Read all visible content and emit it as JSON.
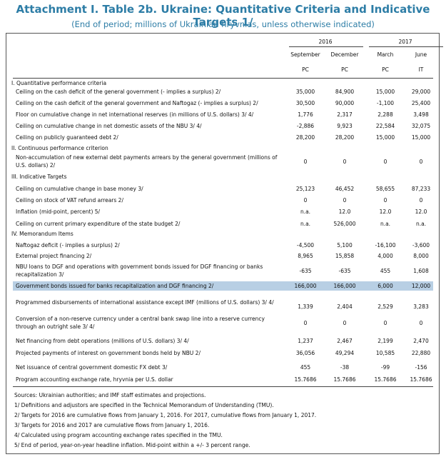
{
  "header": {
    "title": "Attachment I. Table 2b. Ukraine: Quantitative Criteria and Indicative Targets 1/",
    "subtitle": "(End of period; millions of Ukrainian hryvnias, unless otherwise indicated)"
  },
  "table": {
    "years": [
      "2016",
      "2017"
    ],
    "months": [
      "September",
      "December",
      "March",
      "June"
    ],
    "codes": [
      "PC",
      "PC",
      "PC",
      "IT"
    ],
    "rows": [
      {
        "label": "I. Quantitative performance criteria"
      },
      {
        "label": "Ceiling on the cash deficit of the general government (- implies a surplus) 2/",
        "values": [
          "35,000",
          "84,900",
          "15,000",
          "29,000"
        ]
      },
      {
        "label": "Ceiling on the cash deficit of the general government and Naftogaz (- implies a surplus) 2/",
        "values": [
          "30,500",
          "90,000",
          "-1,100",
          "25,400"
        ]
      },
      {
        "label": "Floor on cumulative change in net international reserves (in millions of U.S. dollars) 3/ 4/",
        "values": [
          "1,776",
          "2,317",
          "2,288",
          "3,498"
        ]
      },
      {
        "label": "Ceiling on cumulative change in net domestic assets of the NBU 3/ 4/",
        "values": [
          "-2,886",
          "9,923",
          "22,584",
          "32,075"
        ]
      },
      {
        "label": "Ceiling on publicly guaranteed debt 2/",
        "values": [
          "28,200",
          "28,200",
          "15,000",
          "15,000"
        ]
      },
      {
        "label": "II. Continuous performance criterion"
      },
      {
        "label": "Non-accumulation of new external debt payments arrears by the general government (millions of U.S. dollars) 2/",
        "values": [
          "0",
          "0",
          "0",
          "0"
        ]
      },
      {
        "label": "III. Indicative Targets"
      },
      {
        "label": "Ceiling on cumulative change in base money 3/",
        "values": [
          "25,123",
          "46,452",
          "58,655",
          "87,233"
        ]
      },
      {
        "label": "Ceiling on stock of VAT refund arrears 2/",
        "values": [
          "0",
          "0",
          "0",
          "0"
        ]
      },
      {
        "label": "Inflation (mid-point, percent) 5/",
        "values": [
          "n.a.",
          "12.0",
          "12.0",
          "12.0"
        ]
      },
      {
        "label": "Ceiling on current primary expenditure of the state budget 2/",
        "values": [
          "n.a.",
          "526,000",
          "n.a.",
          "n.a."
        ]
      },
      {
        "label": "IV. Memorandum Items"
      },
      {
        "label": "Naftogaz deficit (- implies a surplus) 2/",
        "values": [
          "-4,500",
          "5,100",
          "-16,100",
          "-3,600"
        ]
      },
      {
        "label": "External project financing 2/",
        "values": [
          "8,965",
          "15,858",
          "4,000",
          "8,000"
        ]
      },
      {
        "label": "NBU loans to DGF and operations with government bonds issued for DGF financing or banks recapitalization 3/",
        "values": [
          "-635",
          "-635",
          "455",
          "1,608"
        ]
      },
      {
        "label": "Government bonds issued for banks recapitalization and DGF financing 2/",
        "values": [
          "166,000",
          "166,000",
          "6,000",
          "12,000"
        ],
        "highlighted": true
      },
      {
        "label": "Programmed disbursements of international assistance except IMF (millions of U.S. dollars) 3/ 4/",
        "values": [
          "1,339",
          "2,404",
          "2,529",
          "3,283"
        ]
      },
      {
        "label": "Conversion of a non-reserve currency under a central bank swap line into a reserve currency through an outright sale 3/ 4/",
        "values": [
          "0",
          "0",
          "0",
          "0"
        ]
      },
      {
        "label": "Net financing from debt operations (millions of U.S. dollars) 3/ 4/",
        "values": [
          "1,237",
          "2,467",
          "2,199",
          "2,470"
        ]
      },
      {
        "label": "Projected payments of interest on government bonds held by NBU 2/",
        "values": [
          "36,056",
          "49,294",
          "10,585",
          "22,880"
        ]
      },
      {
        "label": "Net issuance of central government domestic FX debt 3/",
        "values": [
          "455",
          "-38",
          "-99",
          "-156"
        ]
      },
      {
        "label": "Program accounting exchange rate, hryvnia per U.S. dollar",
        "values": [
          "15.7686",
          "15.7686",
          "15.7686",
          "15.7686"
        ]
      }
    ]
  },
  "notes": [
    "Sources: Ukrainian authorities; and IMF staff estimates and projections.",
    "1/ Definitions and adjustors are specified in the Technical Memorandum of Understanding (TMU).",
    "2/ Targets for 2016 are cumulative flows from January 1, 2016. For 2017, cumulative flows from January 1, 2017.",
    "3/ Targets for 2016 and 2017 are cumulative flows from January 1, 2016.",
    "4/ Calculated using program accounting exchange rates specified in the TMU.",
    "5/ End of period, year-on-year headline inflation. Mid-point within a +/- 3 percent range."
  ]
}
